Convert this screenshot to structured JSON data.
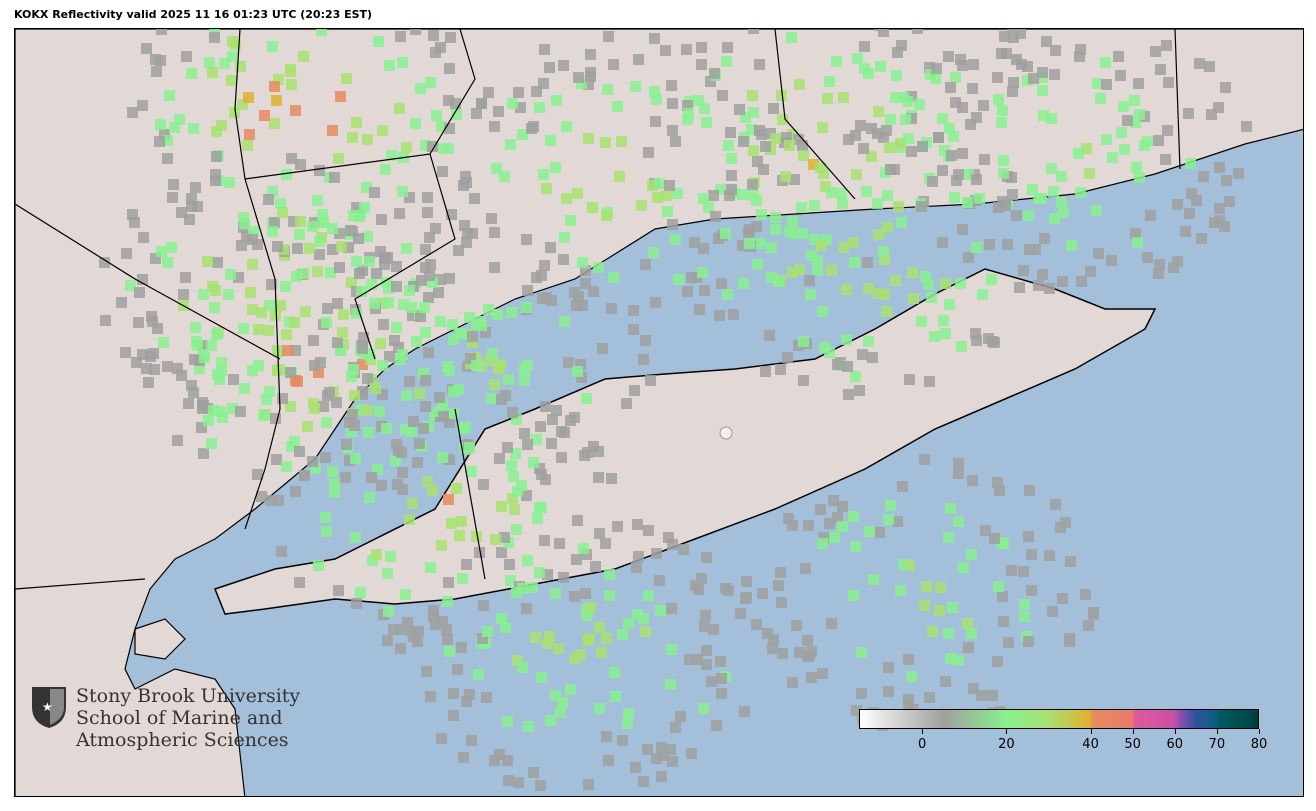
{
  "title": "KOKX Reflectivity valid 2025 11 16 01:23 UTC (20:23 EST)",
  "map": {
    "radar_site": "KOKX",
    "product": "Reflectivity",
    "ocean_color": "#a3bfd9",
    "land_color": "#e2d9d6",
    "border_color": "#000000"
  },
  "logo": {
    "icon": "shield-torch-icon",
    "lines": [
      "Stony Brook University",
      "School of Marine and",
      "Atmospheric Sciences"
    ]
  },
  "colorbar": {
    "range": [
      -15,
      80
    ],
    "ticks": [
      "0",
      "20",
      "40",
      "50",
      "60",
      "70",
      "80"
    ],
    "tick_values": [
      0,
      20,
      40,
      50,
      60,
      70,
      80
    ],
    "stops": [
      {
        "v": -15,
        "c": "#ffffff"
      },
      {
        "v": 5,
        "c": "#a0a0a0"
      },
      {
        "v": 20,
        "c": "#88f090"
      },
      {
        "v": 30,
        "c": "#a8e070"
      },
      {
        "v": 40,
        "c": "#e0b030"
      },
      {
        "v": 40.5,
        "c": "#e88a60"
      },
      {
        "v": 50,
        "c": "#e87a70"
      },
      {
        "v": 50.5,
        "c": "#e05a9a"
      },
      {
        "v": 60,
        "c": "#c850a8"
      },
      {
        "v": 61,
        "c": "#9a50b0"
      },
      {
        "v": 65,
        "c": "#3050a0"
      },
      {
        "v": 70,
        "c": "#0a6080"
      },
      {
        "v": 71,
        "c": "#005a60"
      },
      {
        "v": 78,
        "c": "#004848"
      },
      {
        "v": 80,
        "c": "#003a30"
      }
    ]
  }
}
